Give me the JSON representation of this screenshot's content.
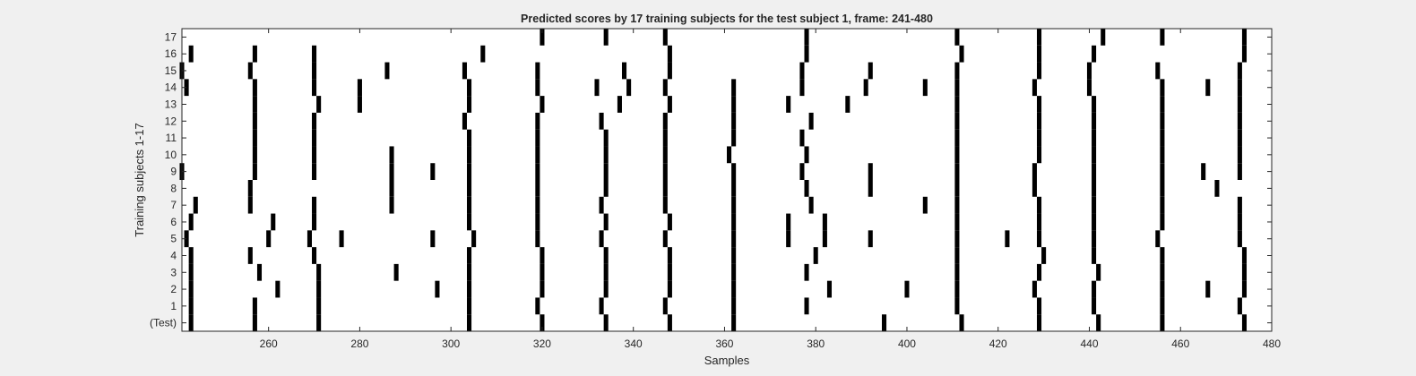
{
  "chart_data": {
    "type": "heatmap",
    "title": "Predicted scores by 17 training subjects for the test subject 1, frame: 241-480",
    "xlabel": "Samples",
    "ylabel": "Training subjects 1-17",
    "xlim": [
      241,
      480
    ],
    "xticks": [
      260,
      280,
      300,
      320,
      340,
      360,
      380,
      400,
      420,
      440,
      460,
      480
    ],
    "rows": [
      "(Test)",
      "1",
      "2",
      "3",
      "4",
      "5",
      "6",
      "7",
      "8",
      "9",
      "10",
      "11",
      "12",
      "13",
      "14",
      "15",
      "16",
      "17"
    ],
    "grid": false,
    "legend": "none",
    "colors": {
      "background": "#ffffff",
      "mark": "#000000",
      "figure": "#f0f0f0",
      "text": "#262626"
    },
    "series": [
      {
        "row": "(Test)",
        "marked_samples": [
          243,
          257,
          271,
          304,
          320,
          334,
          348,
          362,
          395,
          412,
          429,
          442,
          456,
          474
        ]
      },
      {
        "row": "1",
        "marked_samples": [
          243,
          257,
          271,
          304,
          319,
          333,
          347,
          362,
          378,
          411,
          429,
          441,
          456,
          473
        ]
      },
      {
        "row": "2",
        "marked_samples": [
          243,
          262,
          271,
          297,
          304,
          320,
          334,
          348,
          362,
          383,
          400,
          411,
          428,
          441,
          456,
          466,
          474
        ]
      },
      {
        "row": "3",
        "marked_samples": [
          243,
          258,
          271,
          288,
          304,
          320,
          334,
          348,
          362,
          378,
          411,
          429,
          442,
          456,
          474
        ]
      },
      {
        "row": "4",
        "marked_samples": [
          243,
          256,
          270,
          304,
          320,
          334,
          348,
          362,
          380,
          411,
          430,
          441,
          456,
          474
        ]
      },
      {
        "row": "5",
        "marked_samples": [
          242,
          260,
          269,
          276,
          296,
          305,
          319,
          333,
          347,
          362,
          374,
          382,
          392,
          411,
          422,
          429,
          441,
          455,
          473
        ]
      },
      {
        "row": "6",
        "marked_samples": [
          243,
          261,
          270,
          304,
          319,
          334,
          348,
          362,
          374,
          382,
          411,
          429,
          441,
          456,
          473
        ]
      },
      {
        "row": "7",
        "marked_samples": [
          244,
          256,
          270,
          287,
          304,
          319,
          333,
          347,
          362,
          379,
          404,
          411,
          429,
          441,
          456,
          473
        ]
      },
      {
        "row": "8",
        "marked_samples": [
          256,
          287,
          304,
          319,
          334,
          347,
          362,
          378,
          392,
          411,
          428,
          441,
          456,
          468
        ]
      },
      {
        "row": "9",
        "marked_samples": [
          241,
          257,
          270,
          287,
          296,
          304,
          319,
          334,
          347,
          362,
          377,
          392,
          411,
          428,
          441,
          456,
          465,
          473
        ]
      },
      {
        "row": "10",
        "marked_samples": [
          257,
          270,
          287,
          304,
          319,
          334,
          347,
          361,
          378,
          411,
          429,
          441,
          456,
          473
        ]
      },
      {
        "row": "11",
        "marked_samples": [
          257,
          270,
          304,
          319,
          334,
          347,
          362,
          377,
          411,
          429,
          441,
          456,
          473
        ]
      },
      {
        "row": "12",
        "marked_samples": [
          257,
          270,
          303,
          319,
          333,
          347,
          362,
          379,
          411,
          429,
          441,
          456,
          473
        ]
      },
      {
        "row": "13",
        "marked_samples": [
          257,
          271,
          280,
          304,
          320,
          337,
          348,
          362,
          374,
          387,
          411,
          429,
          441,
          456,
          473
        ]
      },
      {
        "row": "14",
        "marked_samples": [
          242,
          257,
          270,
          280,
          304,
          319,
          332,
          339,
          347,
          362,
          377,
          391,
          404,
          411,
          428,
          440,
          456,
          466,
          473
        ]
      },
      {
        "row": "15",
        "marked_samples": [
          241,
          256,
          270,
          286,
          303,
          319,
          338,
          348,
          377,
          392,
          411,
          429,
          440,
          455,
          473
        ]
      },
      {
        "row": "16",
        "marked_samples": [
          243,
          257,
          270,
          307,
          348,
          378,
          412,
          429,
          441,
          474
        ]
      },
      {
        "row": "17",
        "marked_samples": [
          320,
          334,
          347,
          378,
          411,
          429,
          443,
          456,
          474
        ]
      }
    ]
  }
}
